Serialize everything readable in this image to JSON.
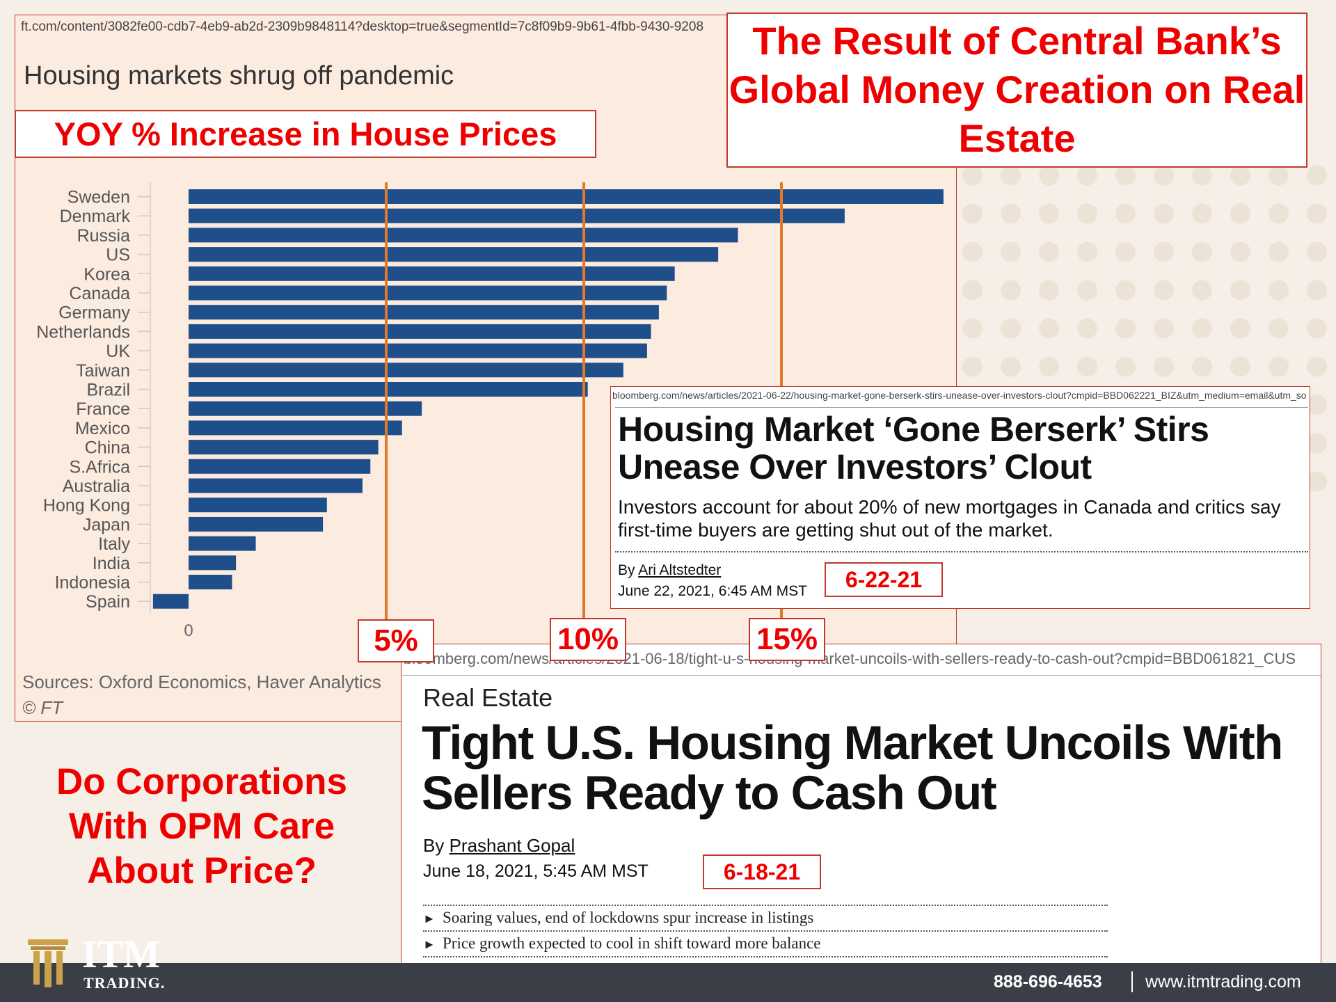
{
  "ft": {
    "url": "ft.com/content/3082fe00-cdb7-4eb9-ab2d-2309b9848114?desktop=true&segmentId=7c8f09b9-9b61-4fbb-9430-9208",
    "title": "Housing markets shrug off pandemic",
    "annotation": "YOY % Increase in House Prices",
    "sources": "Sources: Oxford Economics, Haver Analytics",
    "copyright": "© FT",
    "zero_label": "0"
  },
  "chart_data": {
    "type": "bar",
    "orientation": "horizontal",
    "title": "Housing markets shrug off pandemic",
    "categories": [
      "Sweden",
      "Denmark",
      "Russia",
      "US",
      "Korea",
      "Canada",
      "Germany",
      "Netherlands",
      "UK",
      "Taiwan",
      "Brazil",
      "France",
      "Mexico",
      "China",
      "S.Africa",
      "Australia",
      "Hong Kong",
      "Japan",
      "Italy",
      "India",
      "Indonesia",
      "Spain"
    ],
    "values": [
      19.1,
      16.6,
      13.9,
      13.4,
      12.3,
      12.1,
      11.9,
      11.7,
      11.6,
      11.0,
      10.1,
      5.9,
      5.4,
      4.8,
      4.6,
      4.4,
      3.5,
      3.4,
      1.7,
      1.2,
      1.1,
      -0.9
    ],
    "reference_lines": [
      5,
      10,
      15
    ],
    "reference_labels": [
      "5%",
      "10%",
      "15%"
    ],
    "colors": {
      "bar": "#1f4f8a",
      "reference": "#e07a2a"
    }
  },
  "headline": "The Result of Central Bank’s Global Money Creation on Real Estate",
  "article1": {
    "url": "bloomberg.com/news/articles/2021-06-22/housing-market-gone-berserk-stirs-unease-over-investors-clout?cmpid=BBD062221_BIZ&utm_medium=email&utm_so",
    "headline": "Housing Market ‘Gone Berserk’ Stirs Unease Over Investors’ Clout",
    "dek": "Investors account for about 20% of new mortgages in Canada and critics say first-time buyers are getting shut out of the market.",
    "by": "By",
    "author": "Ari Altstedter",
    "date": "June 22, 2021, 6:45 AM MST",
    "badge": "6-22-21"
  },
  "article2": {
    "url": "bloomberg.com/news/articles/2021-06-18/tight-u-s-housing-market-uncoils-with-sellers-ready-to-cash-out?cmpid=BBD061821_CUS",
    "section": "Real Estate",
    "headline": "Tight U.S. Housing Market Uncoils With Sellers Ready to Cash Out",
    "by": "By",
    "author": "Prashant Gopal",
    "date": "June 18, 2021, 5:45 AM MST",
    "badge": "6-18-21",
    "bullets": [
      "Soaring values, end of lockdowns spur increase in listings",
      "Price growth expected to cool in shift toward more balance"
    ]
  },
  "question": "Do Corporations With OPM Care About Price?",
  "footer": {
    "logo_main": "ITM",
    "logo_sub": "TRADING.",
    "phone": "888-696-4653",
    "website": "www.itmtrading.com",
    "colors": {
      "bar": "#3a3f47",
      "logo_gold": "#c9a24a"
    }
  }
}
